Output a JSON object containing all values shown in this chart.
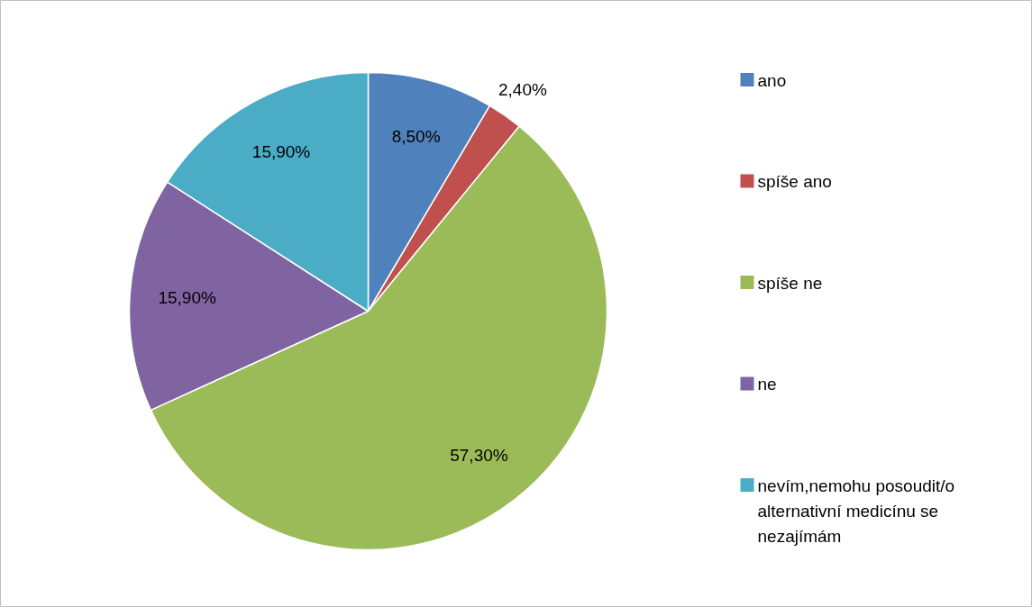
{
  "chart_data": {
    "type": "pie",
    "categories": [
      "ano",
      "spíše ano",
      "spíše ne",
      "ne",
      "nevím,nemohu posoudit/o alternativní medicínu se nezajímám"
    ],
    "values": [
      8.5,
      2.4,
      57.3,
      15.9,
      15.9
    ],
    "colors": [
      "#4f81bd",
      "#c0504d",
      "#9bbb59",
      "#8064a2",
      "#4bacc6"
    ],
    "value_labels": [
      "8,50%",
      "2,40%",
      "57,30%",
      "15,90%",
      "15,90%"
    ],
    "legend": "right"
  }
}
